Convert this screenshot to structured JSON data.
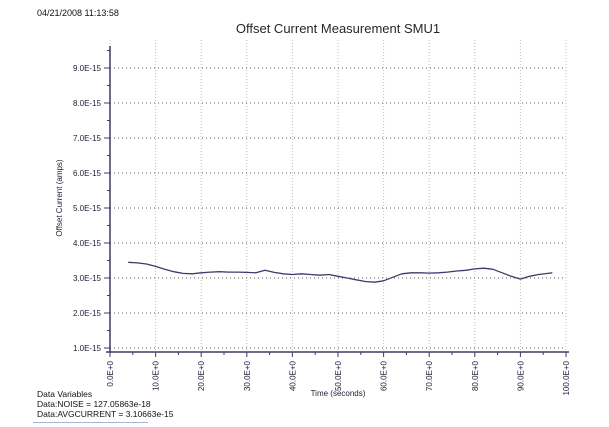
{
  "window": {
    "timestamp": "04/21/2008 11:13:58"
  },
  "footer": {
    "heading": "Data Variables",
    "noise_line": "Data:NOISE = 127.05863e-18",
    "avgcurrent_line": "Data:AVGCURRENT = 3.10663e-15"
  },
  "chart_data": {
    "type": "line",
    "title": "Offset Current Measurement SMU1",
    "xlabel": "Time (seconds)",
    "ylabel": "Offset Current (amps)",
    "x_axis": {
      "min": 0,
      "max": 100,
      "major_step": 10,
      "minor_step": 5,
      "tick_labels": [
        "0.0E+0",
        "10.0E+0",
        "20.0E+0",
        "30.0E+0",
        "40.0E+0",
        "50.0E+0",
        "60.0E+0",
        "70.0E+0",
        "80.0E+0",
        "90.0E+0",
        "100.0E+0"
      ]
    },
    "y_axis": {
      "min_e15": 1.0,
      "max_e15": 9.5,
      "major_step_e15": 1.0,
      "minor_step_e15": 0.5,
      "tick_labels": [
        "1.0E-15",
        "2.0E-15",
        "3.0E-15",
        "4.0E-15",
        "5.0E-15",
        "6.0E-15",
        "7.0E-15",
        "8.0E-15",
        "9.0E-15"
      ]
    },
    "grid": true,
    "legend": "none",
    "colors": {
      "line": "#3b3b6d",
      "axis": "#3c3c64",
      "h_grid": "#5a5a5a",
      "v_grid": "#bdbdbd"
    },
    "series": [
      {
        "name": "offset-current-smu1",
        "x_seconds": [
          4,
          6,
          8,
          10,
          12,
          14,
          16,
          18,
          20,
          22,
          24,
          26,
          28,
          30,
          32,
          34,
          36,
          38,
          40,
          42,
          44,
          46,
          48,
          50,
          52,
          54,
          56,
          58,
          60,
          62,
          64,
          66,
          68,
          70,
          72,
          74,
          76,
          78,
          80,
          82,
          84,
          86,
          88,
          90,
          92,
          94,
          96,
          97
        ],
        "y_e15": [
          3.45,
          3.43,
          3.4,
          3.33,
          3.25,
          3.18,
          3.13,
          3.12,
          3.15,
          3.17,
          3.18,
          3.17,
          3.17,
          3.16,
          3.15,
          3.22,
          3.16,
          3.12,
          3.1,
          3.12,
          3.1,
          3.08,
          3.1,
          3.05,
          3.0,
          2.95,
          2.9,
          2.88,
          2.92,
          3.02,
          3.12,
          3.15,
          3.15,
          3.14,
          3.15,
          3.17,
          3.2,
          3.22,
          3.26,
          3.28,
          3.25,
          3.15,
          3.05,
          2.97,
          3.05,
          3.1,
          3.13,
          3.15
        ]
      }
    ]
  }
}
